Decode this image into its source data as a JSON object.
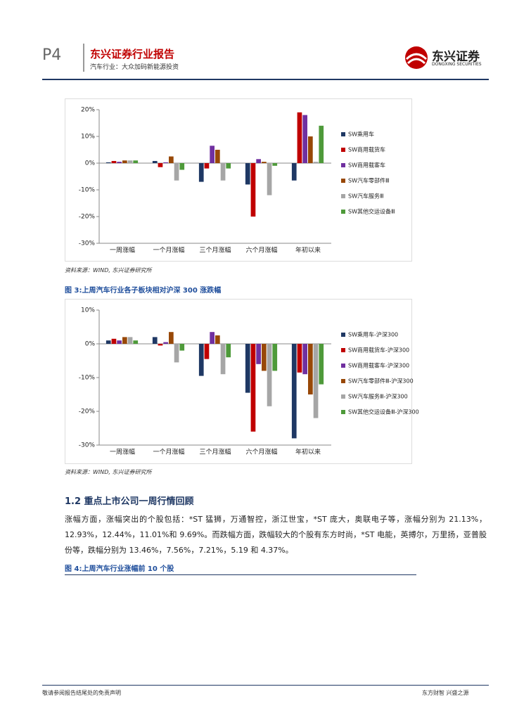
{
  "header": {
    "page": "P4",
    "title": "东兴证券行业报告",
    "subtitle": "汽车行业：大众加码新能源投资",
    "logo": "东兴证券",
    "logo_en": "DONGXING SECURITIES"
  },
  "chart_data": [
    {
      "type": "bar",
      "categories": [
        "一周涨幅",
        "一个月涨幅",
        "三个月涨幅",
        "六个月涨幅",
        "年初以来"
      ],
      "series": [
        {
          "name": "SW乘用车",
          "color": "#1f3864",
          "values": [
            0.3,
            0.8,
            -7,
            -8,
            -6.5
          ]
        },
        {
          "name": "SW商用载货车",
          "color": "#c00000",
          "values": [
            0.8,
            -1.5,
            -2,
            -20,
            19
          ]
        },
        {
          "name": "SW商用载客车",
          "color": "#7030a0",
          "values": [
            0.5,
            0.3,
            6.5,
            1.5,
            18
          ]
        },
        {
          "name": "SW汽车零部件Ⅲ",
          "color": "#984807",
          "values": [
            1,
            2.5,
            5,
            0.5,
            10
          ]
        },
        {
          "name": "SW汽车服务Ⅲ",
          "color": "#a6a6a6",
          "values": [
            1,
            -6.5,
            -6.5,
            -12,
            0.5
          ]
        },
        {
          "name": "SW其他交运设备Ⅲ",
          "color": "#4e9a3a",
          "values": [
            1,
            -2.5,
            -2,
            -1,
            14
          ]
        }
      ],
      "ylim": [
        -30,
        20
      ],
      "yticks": [
        {
          "value": -30,
          "label": "-30%"
        },
        {
          "value": -20,
          "label": "-20%"
        },
        {
          "value": -10,
          "label": "-10%"
        },
        {
          "value": 0,
          "label": "0%"
        },
        {
          "value": 10,
          "label": "10%"
        },
        {
          "value": 20,
          "label": "20%"
        }
      ],
      "legend": "right"
    },
    {
      "type": "bar",
      "categories": [
        "一周涨幅",
        "一个月涨幅",
        "三个月涨幅",
        "六个月涨幅",
        "年初以来"
      ],
      "series": [
        {
          "name": "SW乘用车-沪深300",
          "color": "#1f3864",
          "values": [
            1,
            2,
            -9.5,
            -14.5,
            -28
          ]
        },
        {
          "name": "SW商用载货车-沪深300",
          "color": "#c00000",
          "values": [
            1.5,
            -0.5,
            -4.5,
            -26,
            -8.5
          ]
        },
        {
          "name": "SW商用载客车-沪深300",
          "color": "#7030a0",
          "values": [
            1,
            0.5,
            3.5,
            -6,
            -9
          ]
        },
        {
          "name": "SW汽车零部件Ⅲ-沪深300",
          "color": "#984807",
          "values": [
            2,
            3.5,
            2.5,
            -8,
            -15
          ]
        },
        {
          "name": "SW汽车服务Ⅲ-沪深300",
          "color": "#a6a6a6",
          "values": [
            2,
            -5.5,
            -9,
            -18.5,
            -22
          ]
        },
        {
          "name": "SW其他交运设备Ⅲ-沪深300",
          "color": "#4e9a3a",
          "values": [
            1,
            -2,
            -4,
            -8,
            -12
          ]
        }
      ],
      "ylim": [
        -30,
        10
      ],
      "yticks": [
        {
          "value": -30,
          "label": "-30%"
        },
        {
          "value": -20,
          "label": "-20%"
        },
        {
          "value": -10,
          "label": "-10%"
        },
        {
          "value": 0,
          "label": "0%"
        },
        {
          "value": 10,
          "label": "10%"
        }
      ],
      "legend": "right"
    }
  ],
  "source1": "资料来源：WIND, 东兴证券研究所",
  "caption3": "图 3:上周汽车行业各子板块相对沪深 300 涨跌幅",
  "source2": "资料来源：WIND, 东兴证券研究所",
  "section": "1.2 重点上市公司一周行情回顾",
  "paragraph": "涨幅方面，涨幅突出的个股包括：*ST 猛狮，万通智控，浙江世宝，*ST 庞大，奥联电子等，涨幅分别为 21.13%，12.93%，12.44%，11.01%和 9.69%。而跌幅方面，跌幅较大的个股有东方时尚，*ST 电能，英搏尔，万里扬，亚普股份等，跌幅分别为 13.46%，7.56%，7.21%，5.19 和 4.37%。",
  "caption4": "图 4:上周汽车行业涨幅前 10 个股",
  "footer": {
    "left": "敬请参阅报告结尾处的免责声明",
    "right": "东方财智 兴盛之源"
  }
}
